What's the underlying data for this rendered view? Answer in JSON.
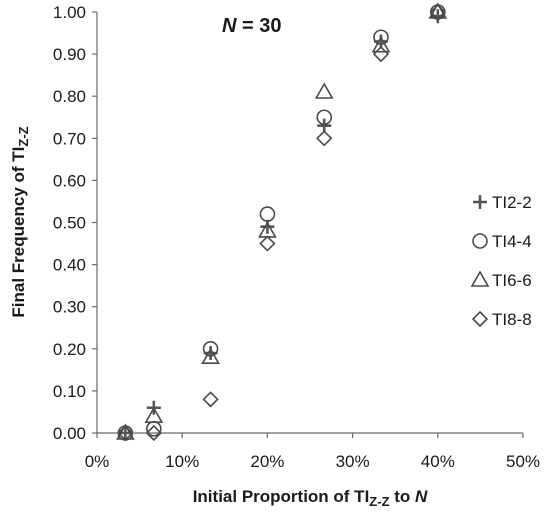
{
  "chart_data": {
    "type": "scatter",
    "annotation": {
      "italic": "N",
      "rest": " = 30"
    },
    "xlabel": {
      "main": "Initial Proportion of TI",
      "sub": "Z-Z",
      "rest": " to ",
      "italic": "N"
    },
    "ylabel": {
      "main": "Final Frequency of TI",
      "sub": "Z-Z"
    },
    "xlim": [
      0,
      50
    ],
    "ylim": [
      0,
      1.0
    ],
    "x_ticks": [
      "0%",
      "10%",
      "20%",
      "30%",
      "40%",
      "50%"
    ],
    "y_ticks": [
      "0.00",
      "0.10",
      "0.20",
      "0.30",
      "0.40",
      "0.50",
      "0.60",
      "0.70",
      "0.80",
      "0.90",
      "1.00"
    ],
    "grid": false,
    "legend_position": "right",
    "series": [
      {
        "name": "TI2-2",
        "marker": "plus",
        "x": [
          3.33,
          6.67,
          13.33,
          20.0,
          26.67,
          33.33,
          40.0
        ],
        "y": [
          0.0,
          0.06,
          0.19,
          0.49,
          0.73,
          0.93,
          0.99
        ]
      },
      {
        "name": "TI4-4",
        "marker": "circle",
        "x": [
          3.33,
          6.67,
          13.33,
          20.0,
          26.67,
          33.33,
          40.0
        ],
        "y": [
          0.0,
          0.01,
          0.2,
          0.52,
          0.75,
          0.94,
          1.0
        ]
      },
      {
        "name": "TI6-6",
        "marker": "triangle",
        "x": [
          3.33,
          6.67,
          13.33,
          20.0,
          26.67,
          33.33,
          40.0
        ],
        "y": [
          0.0,
          0.04,
          0.18,
          0.48,
          0.81,
          0.92,
          1.0
        ]
      },
      {
        "name": "TI8-8",
        "marker": "diamond",
        "x": [
          3.33,
          6.67,
          13.33,
          20.0,
          26.67,
          33.33,
          40.0
        ],
        "y": [
          0.0,
          0.0,
          0.08,
          0.45,
          0.7,
          0.9,
          1.0
        ]
      }
    ]
  }
}
